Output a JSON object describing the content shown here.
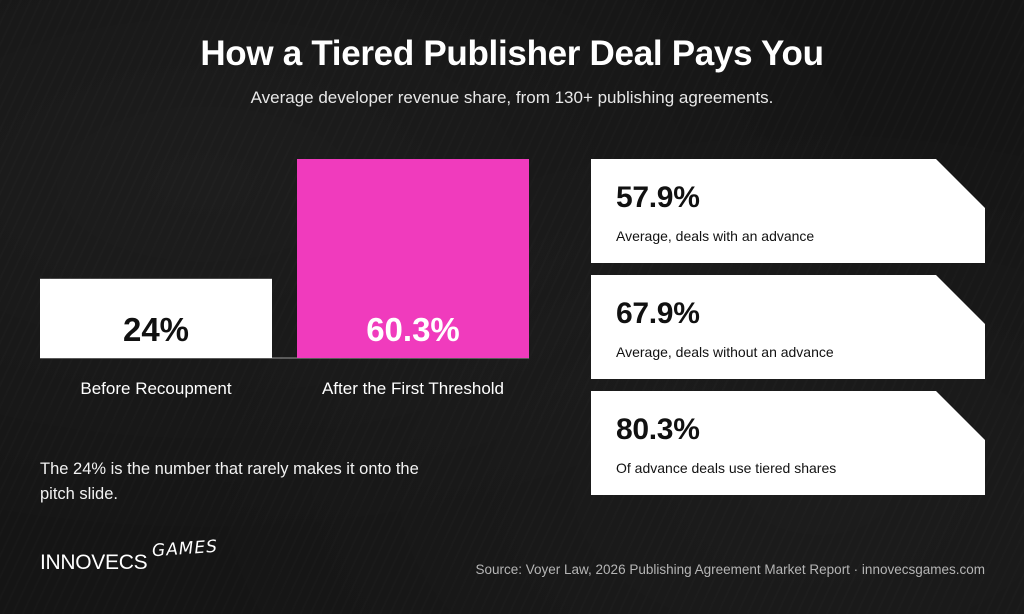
{
  "title": "How a Tiered Publisher Deal Pays You",
  "subtitle": "Average developer revenue share, from 130+ publishing agreements.",
  "chart_data": {
    "type": "bar",
    "title": "How a Tiered Publisher Deal Pays You",
    "subtitle": "Average developer revenue share, from 130+ publishing agreements.",
    "categories": [
      "Before Recoupment",
      "After the First Threshold"
    ],
    "values": [
      24,
      60.3
    ],
    "value_labels": [
      "24%",
      "60.3%"
    ],
    "colors": [
      "#ffffff",
      "#f03bbd"
    ],
    "value_label_colors": [
      "#111111",
      "#ffffff"
    ],
    "ylim": [
      0,
      60.3
    ],
    "xlabel": "",
    "ylabel": "",
    "grid": false,
    "legend": "none"
  },
  "note": "The 24% is the number that rarely makes it onto the pitch slide.",
  "stats": [
    {
      "value": "57.9%",
      "label": "Average, deals with an advance"
    },
    {
      "value": "67.9%",
      "label": "Average, deals without an advance"
    },
    {
      "value": "80.3%",
      "label": "Of advance deals use tiered shares"
    }
  ],
  "brand": {
    "name": "INNOVECS",
    "suffix": "GAMES"
  },
  "source": "Source: Voyer Law, 2026 Publishing Agreement Market Report · innovecsgames.com"
}
